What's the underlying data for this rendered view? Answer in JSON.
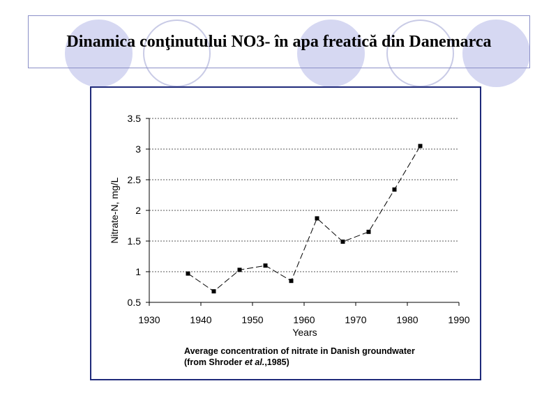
{
  "slide": {
    "title": "Dinamica conţinutului NO3- în apa freatică din Danemarca",
    "decor_fill": "#d6d8f2",
    "decor_stroke": "#c9cbe6",
    "frame_color": "#1f2a7a"
  },
  "caption": {
    "line1": "Average concentration of nitrate in Danish groundwater",
    "line2_prefix": "(from Shroder ",
    "line2_italic": "et al.",
    "line2_suffix": ",1985)"
  },
  "chart_data": {
    "type": "line",
    "title": "",
    "xlabel": "Years",
    "ylabel": "Nitrate-N, mg/L",
    "xlim": [
      1930,
      1990
    ],
    "ylim": [
      0.5,
      3.5
    ],
    "xticks": [
      1930,
      1940,
      1950,
      1960,
      1970,
      1980,
      1990
    ],
    "yticks": [
      0.5,
      1,
      1.5,
      2,
      2.5,
      3,
      3.5
    ],
    "ytick_labels": [
      "0.5",
      "1",
      "1.5",
      "2",
      "2.5",
      "3",
      "3.5"
    ],
    "grid": "horizontal dotted",
    "line_style": "dashed",
    "marker": "square",
    "x": [
      1937.5,
      1942.5,
      1947.5,
      1952.5,
      1957.5,
      1962.5,
      1967.5,
      1972.5,
      1977.5,
      1982.5
    ],
    "y": [
      0.97,
      0.68,
      1.03,
      1.1,
      0.85,
      1.87,
      1.49,
      1.65,
      2.34,
      3.05
    ]
  }
}
